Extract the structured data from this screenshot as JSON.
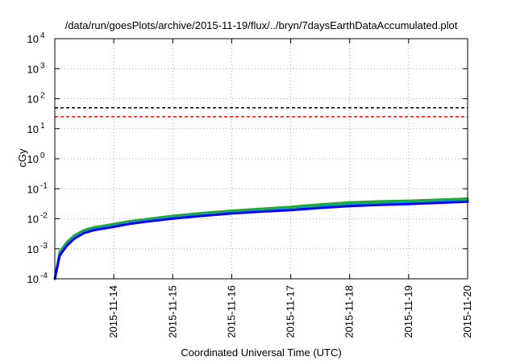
{
  "chart_data": {
    "type": "line",
    "title": "/data/run/goesPlots/archive/2015-11-19/flux/../bryn/7daysEarthDataAccumulated.plot",
    "xlabel": "Coordinated Universal Time (UTC)",
    "ylabel": "cGy",
    "yscale": "log",
    "ylim": [
      0.0001,
      10000
    ],
    "xlim": [
      "2015-11-13",
      "2015-11-20"
    ],
    "grid": true,
    "y_ticks": [
      {
        "value": 0.0001,
        "mantissa": "10",
        "exp": "-4"
      },
      {
        "value": 0.001,
        "mantissa": "10",
        "exp": "-3"
      },
      {
        "value": 0.01,
        "mantissa": "10",
        "exp": "-2"
      },
      {
        "value": 0.1,
        "mantissa": "10",
        "exp": "-1"
      },
      {
        "value": 1,
        "mantissa": "10",
        "exp": "0"
      },
      {
        "value": 10,
        "mantissa": "10",
        "exp": "1"
      },
      {
        "value": 100,
        "mantissa": "10",
        "exp": "2"
      },
      {
        "value": 1000,
        "mantissa": "10",
        "exp": "3"
      },
      {
        "value": 10000,
        "mantissa": "10",
        "exp": "4"
      }
    ],
    "x_ticks": [
      "2015-11-14",
      "2015-11-15",
      "2015-11-16",
      "2015-11-17",
      "2015-11-18",
      "2015-11-19",
      "2015-11-20"
    ],
    "thresholds": [
      {
        "value": 50,
        "color": "#000000",
        "dash": true
      },
      {
        "value": 25,
        "color": "#ff0000",
        "dash": true
      }
    ],
    "series": [
      {
        "color": "#22aa22",
        "x": [
          "2015-11-13T00:00",
          "2015-11-13T02:00",
          "2015-11-13T05:00",
          "2015-11-13T08:00",
          "2015-11-13T12:00",
          "2015-11-13T16:00",
          "2015-11-14T00:00",
          "2015-11-14T06:00",
          "2015-11-14T12:00",
          "2015-11-15T00:00",
          "2015-11-15T12:00",
          "2015-11-16T00:00",
          "2015-11-16T12:00",
          "2015-11-17T00:00",
          "2015-11-17T12:00",
          "2015-11-18T00:00",
          "2015-11-18T12:00",
          "2015-11-19T00:00",
          "2015-11-19T12:00",
          "2015-11-20T00:00"
        ],
        "y": [
          0.0001,
          0.0008,
          0.0017,
          0.0028,
          0.0042,
          0.0052,
          0.0067,
          0.0082,
          0.0095,
          0.0125,
          0.0155,
          0.0185,
          0.0215,
          0.025,
          0.03,
          0.035,
          0.038,
          0.04,
          0.043,
          0.047
        ]
      },
      {
        "color": "#00aaaa",
        "x": [
          "2015-11-13T00:00",
          "2015-11-13T02:00",
          "2015-11-13T05:00",
          "2015-11-13T08:00",
          "2015-11-13T12:00",
          "2015-11-13T16:00",
          "2015-11-14T00:00",
          "2015-11-14T06:00",
          "2015-11-14T12:00",
          "2015-11-15T00:00",
          "2015-11-15T12:00",
          "2015-11-16T00:00",
          "2015-11-16T12:00",
          "2015-11-17T00:00",
          "2015-11-17T12:00",
          "2015-11-18T00:00",
          "2015-11-18T12:00",
          "2015-11-19T00:00",
          "2015-11-19T12:00",
          "2015-11-20T00:00"
        ],
        "y": [
          0.0001,
          0.0007,
          0.0015,
          0.0025,
          0.0038,
          0.0047,
          0.006,
          0.0074,
          0.0086,
          0.0112,
          0.0138,
          0.0165,
          0.019,
          0.022,
          0.026,
          0.03,
          0.033,
          0.035,
          0.038,
          0.041
        ]
      },
      {
        "color": "#0000ff",
        "x": [
          "2015-11-13T00:00",
          "2015-11-13T02:00",
          "2015-11-13T05:00",
          "2015-11-13T08:00",
          "2015-11-13T12:00",
          "2015-11-13T16:00",
          "2015-11-14T00:00",
          "2015-11-14T06:00",
          "2015-11-14T12:00",
          "2015-11-15T00:00",
          "2015-11-15T12:00",
          "2015-11-16T00:00",
          "2015-11-16T12:00",
          "2015-11-17T00:00",
          "2015-11-17T12:00",
          "2015-11-18T00:00",
          "2015-11-18T12:00",
          "2015-11-19T00:00",
          "2015-11-19T12:00",
          "2015-11-20T00:00"
        ],
        "y": [
          0.0001,
          0.0006,
          0.0013,
          0.0022,
          0.0034,
          0.0042,
          0.0054,
          0.0067,
          0.0078,
          0.0102,
          0.0125,
          0.015,
          0.0173,
          0.0195,
          0.023,
          0.0265,
          0.029,
          0.031,
          0.034,
          0.037
        ]
      }
    ]
  }
}
